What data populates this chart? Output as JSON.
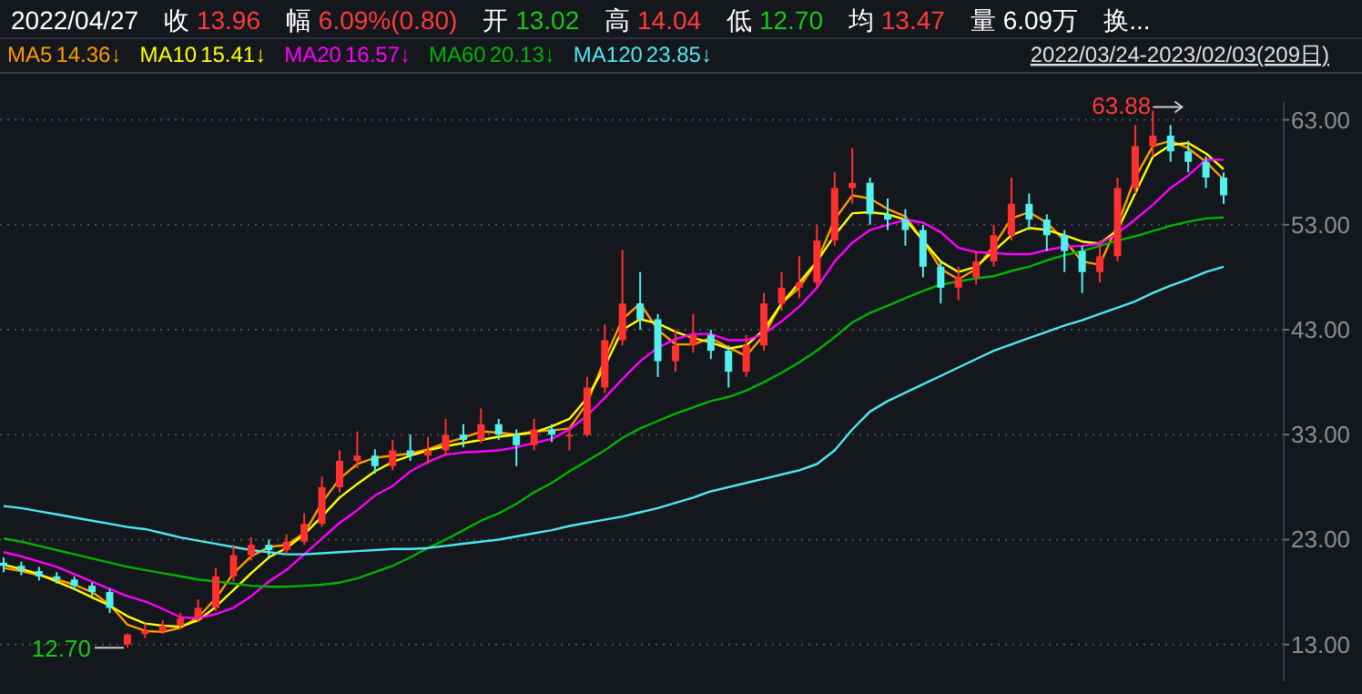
{
  "chart_data": {
    "type": "candlestick",
    "annotations": [
      "2022/04/27",
      "收 13.96",
      "幅 6.09%(0.80)",
      "开 13.02",
      "高 14.04",
      "低 12.70",
      "均 13.47",
      "量 6.09万",
      "换...",
      "14.36↓",
      "15.41↓",
      "16.57↓",
      "20.13↓",
      "23.85↓",
      "2022/03/24-2023/02/03(209日)",
      "12.70",
      "63.88"
    ],
    "categories": [
      null,
      null,
      null,
      null,
      null,
      null,
      null,
      null,
      null,
      null,
      null,
      null,
      null,
      null,
      null,
      null,
      null,
      null,
      null,
      null,
      null,
      null,
      null,
      null,
      null,
      null,
      null,
      null,
      null,
      null,
      null,
      null,
      null,
      null,
      null,
      null,
      null,
      null,
      null,
      null,
      null,
      null,
      null,
      null,
      null,
      null,
      null,
      null,
      null,
      null,
      null,
      null,
      null,
      null,
      null,
      null,
      null,
      null,
      null,
      null,
      null,
      null,
      null,
      null,
      null,
      null,
      null,
      null,
      null,
      null
    ],
    "ohlc": [
      [
        20.8,
        21.3,
        19.9,
        20.5
      ],
      [
        20.5,
        20.9,
        19.6,
        20.0
      ],
      [
        20.0,
        20.4,
        19.1,
        19.5
      ],
      [
        19.5,
        19.9,
        18.8,
        19.2
      ],
      [
        19.2,
        19.5,
        18.2,
        18.6
      ],
      [
        18.6,
        18.9,
        17.6,
        18.0
      ],
      [
        18.0,
        18.3,
        16.0,
        16.5
      ],
      [
        13.02,
        14.04,
        12.7,
        13.96
      ],
      [
        14.0,
        15.0,
        13.6,
        14.3
      ],
      [
        14.3,
        15.3,
        14.0,
        14.8
      ],
      [
        14.8,
        16.0,
        14.5,
        15.5
      ],
      [
        15.5,
        17.3,
        15.2,
        16.5
      ],
      [
        16.5,
        20.3,
        16.2,
        19.5
      ],
      [
        19.5,
        22.5,
        19.0,
        21.5
      ],
      [
        21.5,
        23.2,
        21.0,
        22.5
      ],
      [
        22.5,
        23.0,
        21.3,
        22.0
      ],
      [
        22.0,
        23.5,
        21.6,
        22.8
      ],
      [
        22.8,
        25.5,
        22.5,
        24.5
      ],
      [
        24.5,
        29.0,
        24.2,
        28.0
      ],
      [
        28.0,
        31.5,
        27.5,
        30.5
      ],
      [
        30.5,
        33.3,
        29.8,
        31.0
      ],
      [
        31.0,
        31.6,
        29.3,
        30.0
      ],
      [
        30.0,
        32.5,
        29.6,
        31.5
      ],
      [
        31.5,
        33.0,
        30.5,
        31.0
      ],
      [
        31.0,
        32.8,
        30.2,
        31.5
      ],
      [
        31.5,
        34.5,
        31.0,
        33.0
      ],
      [
        33.0,
        34.0,
        31.8,
        32.5
      ],
      [
        32.5,
        35.5,
        32.2,
        34.0
      ],
      [
        34.0,
        34.5,
        32.5,
        33.0
      ],
      [
        33.0,
        33.5,
        30.0,
        32.0
      ],
      [
        32.0,
        34.5,
        31.5,
        33.5
      ],
      [
        33.5,
        34.0,
        32.3,
        33.0
      ],
      [
        33.0,
        33.8,
        31.5,
        33.0
      ],
      [
        33.0,
        38.5,
        32.8,
        37.5
      ],
      [
        37.5,
        43.5,
        37.0,
        42.0
      ],
      [
        42.0,
        50.6,
        41.5,
        45.5
      ],
      [
        45.5,
        48.5,
        43.0,
        44.0
      ],
      [
        44.0,
        44.5,
        38.5,
        40.0
      ],
      [
        40.0,
        43.0,
        39.0,
        41.5
      ],
      [
        41.5,
        44.5,
        40.8,
        42.5
      ],
      [
        42.5,
        43.0,
        40.2,
        41.0
      ],
      [
        41.0,
        41.5,
        37.5,
        39.0
      ],
      [
        39.0,
        42.5,
        38.5,
        41.5
      ],
      [
        41.5,
        46.5,
        41.0,
        45.5
      ],
      [
        45.5,
        48.5,
        44.8,
        47.0
      ],
      [
        47.0,
        50.0,
        46.0,
        47.5
      ],
      [
        47.5,
        53.0,
        47.0,
        51.5
      ],
      [
        51.5,
        58.0,
        51.0,
        56.5
      ],
      [
        56.5,
        60.3,
        55.0,
        57.0
      ],
      [
        57.0,
        57.5,
        53.0,
        54.0
      ],
      [
        54.0,
        55.5,
        52.5,
        53.5
      ],
      [
        53.5,
        54.5,
        51.0,
        52.5
      ],
      [
        52.5,
        53.0,
        48.0,
        49.0
      ],
      [
        49.0,
        49.5,
        45.5,
        47.0
      ],
      [
        47.0,
        49.0,
        45.8,
        48.0
      ],
      [
        48.0,
        50.5,
        47.3,
        49.5
      ],
      [
        49.5,
        53.0,
        49.0,
        52.0
      ],
      [
        52.0,
        57.5,
        51.5,
        55.0
      ],
      [
        55.0,
        56.0,
        52.5,
        53.5
      ],
      [
        53.5,
        54.0,
        50.5,
        52.0
      ],
      [
        52.0,
        52.5,
        48.5,
        50.5
      ],
      [
        50.5,
        51.0,
        46.5,
        48.5
      ],
      [
        48.5,
        51.5,
        47.5,
        50.0
      ],
      [
        50.0,
        57.5,
        49.5,
        56.5
      ],
      [
        56.5,
        62.5,
        56.0,
        60.5
      ],
      [
        60.5,
        63.88,
        59.5,
        61.5
      ],
      [
        61.5,
        62.5,
        59.0,
        60.0
      ],
      [
        60.0,
        61.0,
        58.0,
        59.0
      ],
      [
        59.0,
        59.5,
        56.5,
        57.5
      ],
      [
        57.5,
        58.0,
        55.0,
        55.8
      ]
    ],
    "series": [
      {
        "name": "MA5",
        "type": "line",
        "color": "#ff9a00",
        "values": [
          20.3,
          20.0,
          19.6,
          19.2,
          18.7,
          18.0,
          16.8,
          14.9,
          14.3,
          14.2,
          14.6,
          15.6,
          17.4,
          19.8,
          21.4,
          22.3,
          22.5,
          23.6,
          26.5,
          28.8,
          30.2,
          30.8,
          31.0,
          31.2,
          31.6,
          32.2,
          32.7,
          33.3,
          33.2,
          33.0,
          33.3,
          33.4,
          33.6,
          36.0,
          40.2,
          44.0,
          45.5,
          43.0,
          41.6,
          41.6,
          42.2,
          41.3,
          40.5,
          42.5,
          45.5,
          47.0,
          49.5,
          53.5,
          55.8,
          55.5,
          54.5,
          53.8,
          51.5,
          48.8,
          47.8,
          48.8,
          51.0,
          53.6,
          54.2,
          53.2,
          51.5,
          49.5,
          49.2,
          53.0,
          57.5,
          60.5,
          61.0,
          60.3,
          59.0,
          57.3
        ]
      },
      {
        "name": "MA10",
        "type": "line",
        "color": "#ffff00",
        "values": [
          20.6,
          20.2,
          19.7,
          19.0,
          18.3,
          17.5,
          16.7,
          15.7,
          15.0,
          14.8,
          14.7,
          15.3,
          16.6,
          18.2,
          19.8,
          21.3,
          22.2,
          23.5,
          25.2,
          27.0,
          28.3,
          29.5,
          30.4,
          31.0,
          31.5,
          31.9,
          32.2,
          32.5,
          32.8,
          33.0,
          33.2,
          33.8,
          34.5,
          36.5,
          39.5,
          43.0,
          44.0,
          43.6,
          42.8,
          42.2,
          41.8,
          41.2,
          41.5,
          43.0,
          45.5,
          47.5,
          49.5,
          52.0,
          54.1,
          54.2,
          54.0,
          53.5,
          51.5,
          49.5,
          48.5,
          49.0,
          50.5,
          52.0,
          52.7,
          52.5,
          52.0,
          51.4,
          51.2,
          52.5,
          56.0,
          59.5,
          60.6,
          60.8,
          59.8,
          58.3
        ]
      },
      {
        "name": "MA20",
        "type": "line",
        "color": "#ff00ff",
        "values": [
          21.8,
          21.4,
          20.9,
          20.4,
          19.7,
          19.0,
          18.3,
          17.6,
          17.1,
          16.4,
          15.6,
          15.5,
          15.9,
          16.5,
          17.6,
          19.0,
          20.1,
          21.6,
          23.1,
          24.6,
          25.8,
          27.2,
          28.1,
          29.5,
          30.4,
          31.1,
          31.3,
          31.4,
          31.5,
          31.8,
          32.2,
          32.6,
          33.5,
          34.8,
          36.5,
          38.3,
          40.0,
          41.3,
          42.1,
          42.6,
          42.6,
          42.0,
          42.0,
          42.6,
          43.8,
          45.2,
          47.0,
          49.5,
          51.3,
          52.5,
          53.0,
          53.5,
          53.2,
          52.3,
          50.8,
          50.4,
          50.3,
          50.2,
          50.2,
          50.6,
          50.9,
          51.0,
          51.2,
          52.2,
          53.5,
          54.9,
          56.5,
          57.7,
          59.2,
          59.2
        ]
      },
      {
        "name": "MA60",
        "type": "line",
        "color": "#00b400",
        "values": [
          23.1,
          22.8,
          22.4,
          22.0,
          21.6,
          21.2,
          20.8,
          20.4,
          20.1,
          19.8,
          19.5,
          19.2,
          19.0,
          18.8,
          18.6,
          18.5,
          18.5,
          18.6,
          18.7,
          18.9,
          19.3,
          19.9,
          20.5,
          21.3,
          22.2,
          23.0,
          23.9,
          24.8,
          25.5,
          26.4,
          27.5,
          28.4,
          29.5,
          30.5,
          31.5,
          32.7,
          33.6,
          34.3,
          35.0,
          35.6,
          36.2,
          36.6,
          37.2,
          38.0,
          38.9,
          39.9,
          41.0,
          42.3,
          43.7,
          44.6,
          45.3,
          46.0,
          46.7,
          47.3,
          47.6,
          47.9,
          48.1,
          48.6,
          49.0,
          49.6,
          50.1,
          50.5,
          51.0,
          51.5,
          51.9,
          52.4,
          52.9,
          53.3,
          53.6,
          53.7
        ]
      },
      {
        "name": "MA120",
        "type": "line",
        "color": "#4fe8f0",
        "values": [
          26.2,
          26.0,
          25.7,
          25.4,
          25.1,
          24.8,
          24.5,
          24.2,
          24.0,
          23.6,
          23.2,
          22.9,
          22.6,
          22.3,
          22.0,
          21.8,
          21.6,
          21.6,
          21.7,
          21.8,
          21.9,
          22.0,
          22.1,
          22.1,
          22.2,
          22.4,
          22.6,
          22.8,
          23.0,
          23.3,
          23.6,
          23.9,
          24.3,
          24.6,
          24.9,
          25.2,
          25.6,
          26.0,
          26.5,
          27.0,
          27.6,
          28.0,
          28.4,
          28.8,
          29.2,
          29.6,
          30.2,
          31.5,
          33.5,
          35.2,
          36.2,
          37.0,
          37.8,
          38.6,
          39.4,
          40.2,
          41.0,
          41.6,
          42.2,
          42.8,
          43.4,
          43.9,
          44.5,
          45.1,
          45.7,
          46.5,
          47.2,
          47.8,
          48.5,
          49.0
        ]
      }
    ],
    "ylim": [
      9.5,
      64.7
    ],
    "yticks": [
      {
        "value": 13,
        "label": "13.00"
      },
      {
        "value": 23,
        "label": "23.00"
      },
      {
        "value": 33,
        "label": "33.00"
      },
      {
        "value": 43,
        "label": "43.00"
      },
      {
        "value": 53,
        "label": "53.00"
      },
      {
        "value": 63,
        "label": "63.00"
      }
    ],
    "grid": "y",
    "legend": "top left"
  }
}
